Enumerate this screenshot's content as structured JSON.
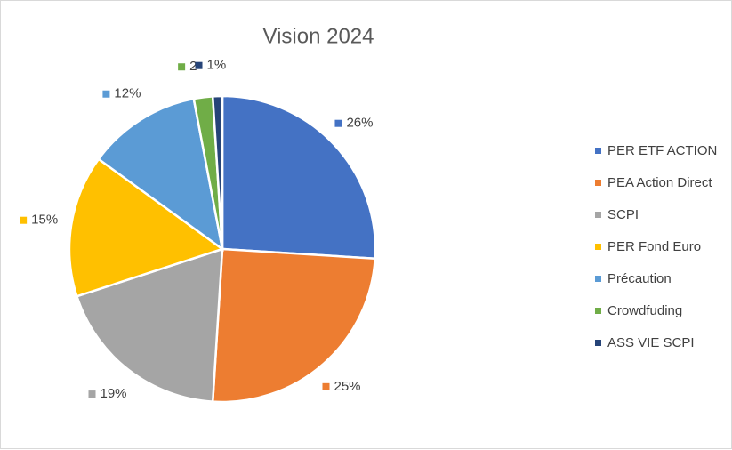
{
  "chart_data": {
    "type": "pie",
    "title": "Vision 2024",
    "categories": [
      "PER  ETF ACTION",
      "PEA Action Direct",
      "SCPI",
      "PER Fond Euro",
      "Précaution",
      "Crowdfuding",
      "ASS VIE SCPI"
    ],
    "values": [
      26,
      25,
      19,
      15,
      12,
      2,
      1
    ],
    "value_labels": [
      "26%",
      "25%",
      "19%",
      "15%",
      "12%",
      "2",
      "1%"
    ],
    "colors": [
      "#4472c4",
      "#ed7d31",
      "#a5a5a5",
      "#ffc000",
      "#5b9bd5",
      "#70ad47",
      "#264478"
    ],
    "legend": "right"
  }
}
